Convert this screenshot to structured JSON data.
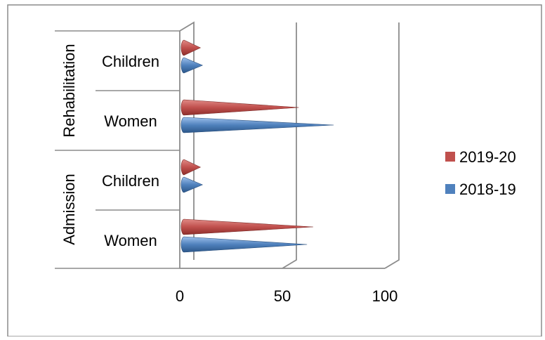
{
  "chart_data": {
    "type": "bar",
    "orientation": "horizontal",
    "style": "3d-cone",
    "groups": [
      {
        "label": "Admission",
        "categories": [
          "Women",
          "Children"
        ]
      },
      {
        "label": "Rehabilitation",
        "categories": [
          "Women",
          "Children"
        ]
      }
    ],
    "categories": [
      "Admission - Women",
      "Admission - Children",
      "Rehabilitation - Women",
      "Rehabilitation - Children"
    ],
    "series": [
      {
        "name": "2019-20",
        "color": "#c0504d",
        "values": [
          63,
          8,
          56,
          8
        ]
      },
      {
        "name": "2018-19",
        "color": "#4f81bd",
        "values": [
          60,
          9,
          73,
          9
        ]
      }
    ],
    "xlim": [
      0,
      100
    ],
    "xticks": [
      "0",
      "50",
      "100"
    ],
    "grid": true,
    "legend_position": "right"
  }
}
